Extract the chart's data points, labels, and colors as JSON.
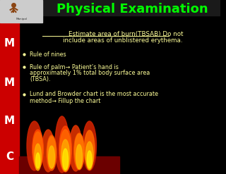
{
  "title": "Physical Examination",
  "title_color": "#00ff00",
  "background_color": "#000000",
  "left_bar_color": "#cc0000",
  "left_letters": [
    "M",
    "M",
    "M",
    "C"
  ],
  "letter_color": "#ffffff",
  "heading_text_line1": "Estimate area of burn(TBSAB) Do not",
  "heading_text_line2": "include areas of unblistered erythema.",
  "heading_color": "#ffff99",
  "bullet_points": [
    "Rule of nines",
    "Rule of palm→ Patient’s hand is\napproximately 1% total body surface area\n(TBSA).",
    "Lund and Browder chart is the most accurate\nmethod→ Fillup the chart"
  ],
  "bullet_color": "#ffff99",
  "top_bar_color": "#1a1a1a",
  "logo_bg": "#cccccc"
}
